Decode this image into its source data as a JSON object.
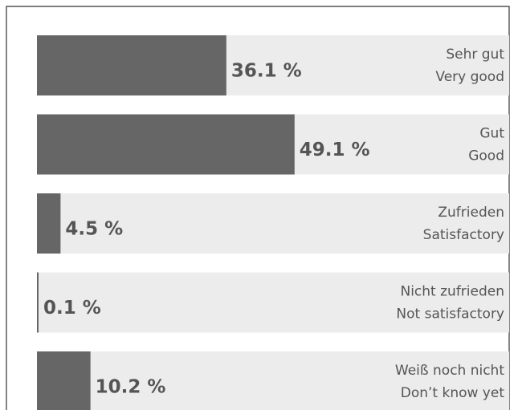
{
  "chart_data": {
    "type": "hbar",
    "categories": [
      [
        "Sehr gut",
        "Very good"
      ],
      [
        "Gut",
        "Good"
      ],
      [
        "Zufrieden",
        "Satisfactory"
      ],
      [
        "Nicht zufrieden",
        "Not satisfactory"
      ],
      [
        "Weiß noch nicht",
        "Don’t know yet"
      ]
    ],
    "values": [
      36.1,
      49.1,
      4.5,
      0.1,
      10.2
    ],
    "value_labels": [
      "36.1 %",
      "49.1 %",
      "4.5 %",
      "0.1 %",
      "10.2 %"
    ],
    "color": "#666666",
    "xlim": [
      0,
      90
    ]
  }
}
